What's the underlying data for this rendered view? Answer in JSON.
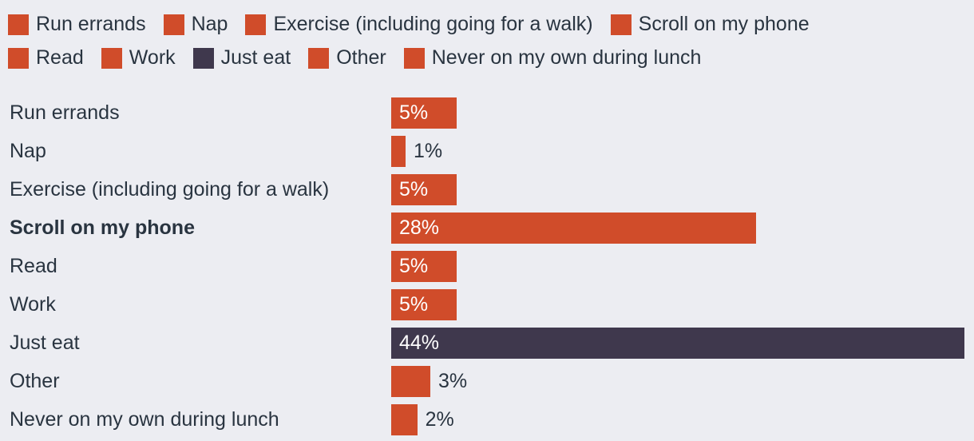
{
  "background": "#ecedf2",
  "colors": {
    "bar_orange": "#d04c2a",
    "bar_dark": "#3f384d",
    "text": "#293440",
    "value_label_inside": "#ffffff"
  },
  "legend": {
    "rows": [
      [
        {
          "label": "Run errands",
          "color": "#d04c2a"
        },
        {
          "label": "Nap",
          "color": "#d04c2a"
        },
        {
          "label": "Exercise (including going for a walk)",
          "color": "#d04c2a"
        },
        {
          "label": "Scroll on my phone",
          "color": "#d04c2a"
        }
      ],
      [
        {
          "label": "Read",
          "color": "#d04c2a"
        },
        {
          "label": "Work",
          "color": "#d04c2a"
        },
        {
          "label": "Just eat",
          "color": "#3f384d"
        },
        {
          "label": "Other",
          "color": "#d04c2a"
        },
        {
          "label": "Never on my own during lunch",
          "color": "#d04c2a"
        }
      ]
    ]
  },
  "chart_data": {
    "type": "bar",
    "orientation": "horizontal",
    "title": "",
    "xlabel": "",
    "ylabel": "",
    "xlim": [
      0,
      44
    ],
    "grid": false,
    "legend_position": "top",
    "categories": [
      "Run errands",
      "Nap",
      "Exercise (including going for a walk)",
      "Scroll on my phone",
      "Read",
      "Work",
      "Just eat",
      "Other",
      "Never on my own during lunch"
    ],
    "values": [
      5,
      1,
      5,
      28,
      5,
      5,
      44,
      3,
      2
    ],
    "display_values": [
      "5%",
      "1%",
      "5%",
      "28%",
      "5%",
      "5%",
      "44%",
      "3%",
      "2%"
    ],
    "bar_colors": [
      "#d04c2a",
      "#d04c2a",
      "#d04c2a",
      "#d04c2a",
      "#d04c2a",
      "#d04c2a",
      "#3f384d",
      "#d04c2a",
      "#d04c2a"
    ],
    "value_label_inside": [
      true,
      false,
      true,
      true,
      true,
      true,
      true,
      false,
      false
    ],
    "bold_categories": [
      "Scroll on my phone"
    ]
  }
}
